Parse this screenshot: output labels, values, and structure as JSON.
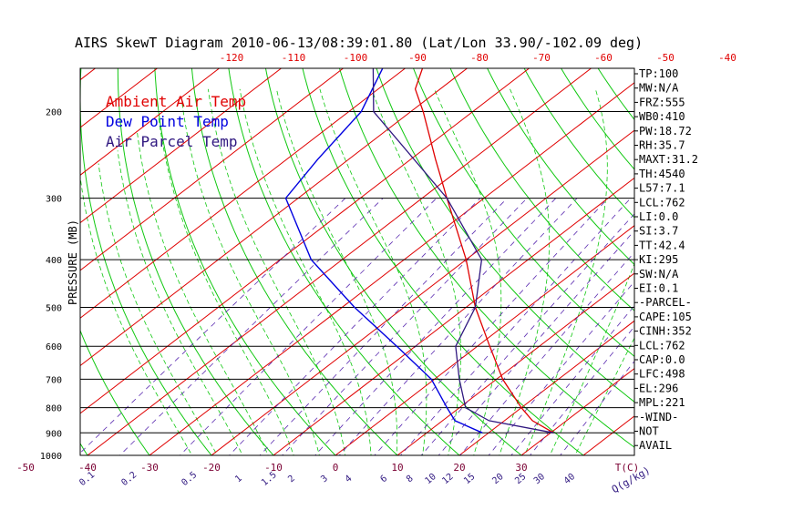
{
  "chart_data": {
    "type": "line",
    "title": "AIRS SkewT Diagram 2010-06-13/08:39:01.80 (Lat/Lon 33.90/-102.09 deg)",
    "ylabel": "PRESSURE (MB)",
    "xlabel": "T(C)",
    "mixing_ratio_unit": "Q(g/kg)",
    "grid": true,
    "y_scale": "log",
    "ylim": [
      1000,
      100
    ],
    "xlim_bottom": [
      -50,
      35
    ],
    "pressure_ticks": [
      "100",
      "200",
      "300",
      "400",
      "500",
      "600",
      "700",
      "800",
      "900",
      "1000"
    ],
    "bottom_temp_ticks": [
      "-50",
      "-40",
      "-30",
      "-20",
      "-10",
      "0",
      "10",
      "20",
      "30"
    ],
    "top_temp_ticks": [
      "-120",
      "-110",
      "-100",
      "-90",
      "-80",
      "-70",
      "-60",
      "-50",
      "-40"
    ],
    "mixing_ratio_ticks": [
      "0.1",
      "0.2",
      "0.5",
      "1",
      "1.5",
      "2",
      "3",
      "4",
      "6",
      "8",
      "10",
      "12",
      "15",
      "20",
      "25",
      "30",
      "40"
    ],
    "legend": [
      "Ambient Air Temp",
      "Dew Point Temp",
      "Air Parcel Temp"
    ],
    "legend_position": "top-left",
    "series": [
      {
        "name": "Ambient Air Temp",
        "color": "#e00000",
        "points": [
          {
            "p": 900,
            "t": 30.5
          },
          {
            "p": 850,
            "t": 24.5
          },
          {
            "p": 800,
            "t": 20
          },
          {
            "p": 700,
            "t": 11
          },
          {
            "p": 600,
            "t": 2
          },
          {
            "p": 500,
            "t": -8.5
          },
          {
            "p": 400,
            "t": -20
          },
          {
            "p": 300,
            "t": -36
          },
          {
            "p": 250,
            "t": -46
          },
          {
            "p": 200,
            "t": -58
          },
          {
            "p": 180,
            "t": -64
          },
          {
            "p": 150,
            "t": -70
          },
          {
            "p": 125,
            "t": -72
          },
          {
            "p": 100,
            "t": -77
          }
        ]
      },
      {
        "name": "Dew Point Temp",
        "color": "#0000e0",
        "points": [
          {
            "p": 900,
            "t": 19
          },
          {
            "p": 850,
            "t": 12
          },
          {
            "p": 800,
            "t": 8
          },
          {
            "p": 700,
            "t": -0.5
          },
          {
            "p": 600,
            "t": -13
          },
          {
            "p": 500,
            "t": -28
          },
          {
            "p": 400,
            "t": -45
          },
          {
            "p": 300,
            "t": -62
          },
          {
            "p": 250,
            "t": -65
          },
          {
            "p": 200,
            "t": -68
          },
          {
            "p": 150,
            "t": -76
          },
          {
            "p": 120,
            "t": -81
          },
          {
            "p": 100,
            "t": -87
          }
        ]
      },
      {
        "name": "Air Parcel Temp",
        "color": "#301880",
        "points": [
          {
            "p": 900,
            "t": 30.5
          },
          {
            "p": 850,
            "t": 17.5
          },
          {
            "p": 800,
            "t": 11
          },
          {
            "p": 700,
            "t": 4
          },
          {
            "p": 600,
            "t": -3.5
          },
          {
            "p": 500,
            "t": -8.5
          },
          {
            "p": 400,
            "t": -17.5
          },
          {
            "p": 300,
            "t": -36
          },
          {
            "p": 200,
            "t": -66
          },
          {
            "p": 150,
            "t": -79
          },
          {
            "p": 125,
            "t": -90
          },
          {
            "p": 100,
            "t": -101
          }
        ]
      }
    ]
  },
  "indices": [
    "TP:100",
    "MW:N/A",
    "FRZ:555",
    "WB0:410",
    "PW:18.72",
    "RH:35.7",
    "MAXT:31.2",
    "TH:4540",
    "L57:7.1",
    "LCL:762",
    "LI:0.0",
    "SI:3.7",
    "TT:42.4",
    "KI:295",
    "SW:N/A",
    "EI:0.1",
    "-PARCEL-",
    "CAPE:105",
    "CINH:352",
    "LCL:762",
    "CAP:0.0",
    "LFC:498",
    "EL:296",
    "MPL:221",
    "-WIND-",
    "NOT",
    "AVAIL"
  ]
}
